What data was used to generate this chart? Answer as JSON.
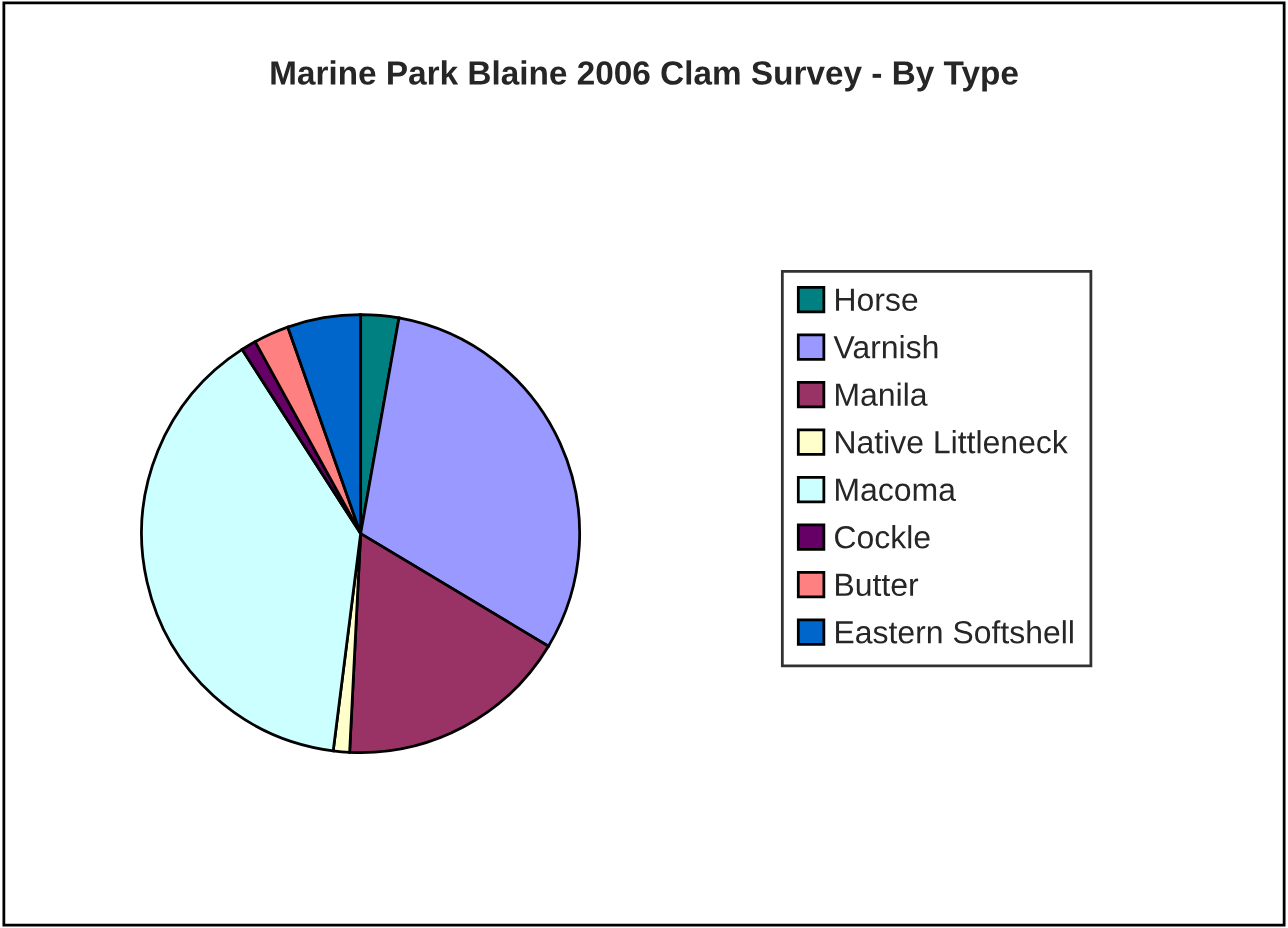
{
  "chart_data": {
    "type": "pie",
    "title": "Marine Park Blaine 2006 Clam Survey - By Type",
    "categories": [
      "Horse",
      "Varnish",
      "Manila",
      "Native Littleneck",
      "Macoma",
      "Cockle",
      "Butter",
      "Eastern Softshell"
    ],
    "values": [
      2.8,
      30.8,
      17.2,
      1.2,
      38.9,
      1.1,
      2.6,
      5.4
    ],
    "colors": [
      "#008080",
      "#9999ff",
      "#993366",
      "#ffffcc",
      "#ccffff",
      "#660066",
      "#ff8080",
      "#0066cc"
    ],
    "legend": "right"
  }
}
